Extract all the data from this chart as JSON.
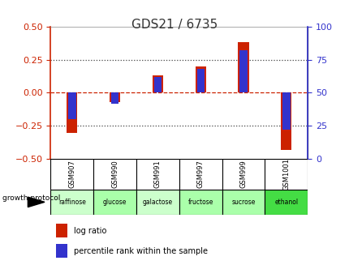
{
  "title": "GDS21 / 6735",
  "samples": [
    "GSM907",
    "GSM990",
    "GSM991",
    "GSM997",
    "GSM999",
    "GSM1001"
  ],
  "substrates": [
    "raffinose",
    "glucose",
    "galactose",
    "fructose",
    "sucrose",
    "ethanol"
  ],
  "log_ratio": [
    -0.3,
    -0.07,
    0.13,
    0.2,
    0.38,
    -0.43
  ],
  "percentile_rank": [
    30,
    42,
    62,
    68,
    82,
    22
  ],
  "bar_color_red": "#cc2200",
  "bar_color_blue": "#3333cc",
  "bg_color": "#ffffff",
  "plot_bg": "#ffffff",
  "ylim_left": [
    -0.5,
    0.5
  ],
  "ylim_right": [
    0,
    100
  ],
  "yticks_left": [
    -0.5,
    -0.25,
    0,
    0.25,
    0.5
  ],
  "yticks_right": [
    0,
    25,
    50,
    75,
    100
  ],
  "red_bar_width": 0.25,
  "blue_bar_width": 0.18,
  "substrate_colors": [
    "#ccffcc",
    "#aaffaa",
    "#ccffcc",
    "#aaffaa",
    "#aaffaa",
    "#44dd44"
  ],
  "sample_bg": "#cccccc",
  "left_axis_color": "#cc2200",
  "right_axis_color": "#3333cc",
  "title_color": "#333333"
}
